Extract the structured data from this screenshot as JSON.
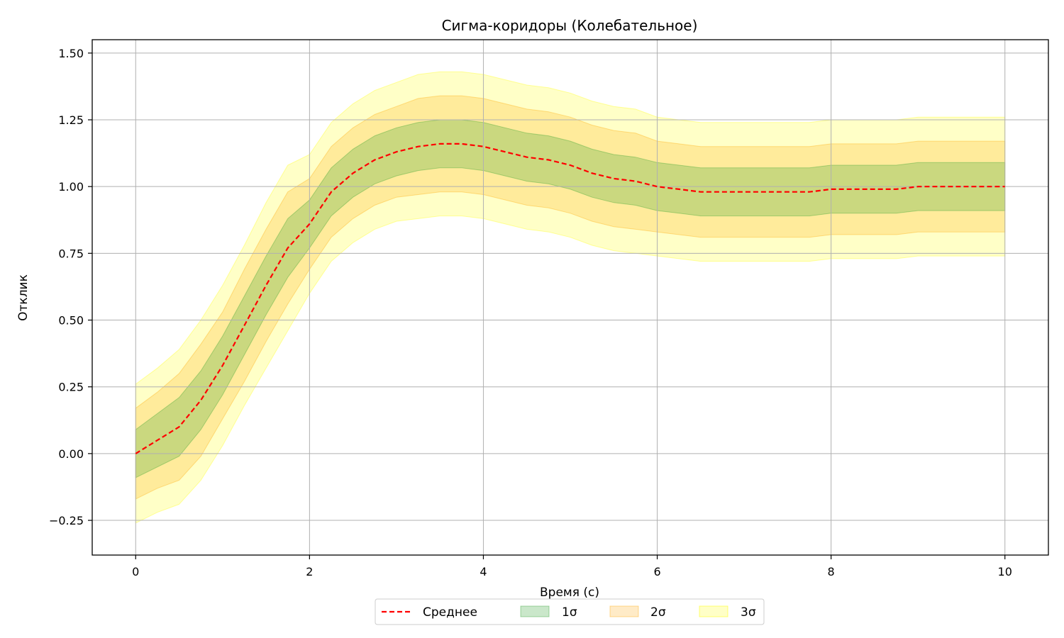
{
  "chart_data": {
    "type": "line",
    "title": "Сигма-коридоры (Колебательное)",
    "xlabel": "Время (с)",
    "ylabel": "Отклик",
    "xlim": [
      -0.5,
      10.5
    ],
    "ylim": [
      -0.38,
      1.55
    ],
    "grid": true,
    "legend_position": "bottom-center",
    "x_ticks": [
      0,
      2,
      4,
      6,
      8,
      10
    ],
    "x_tick_labels": [
      "0",
      "2",
      "4",
      "6",
      "8",
      "10"
    ],
    "y_ticks": [
      -0.25,
      0.0,
      0.25,
      0.5,
      0.75,
      1.0,
      1.25,
      1.5
    ],
    "y_tick_labels": [
      "−0.25",
      "0.00",
      "0.25",
      "0.50",
      "0.75",
      "1.00",
      "1.25",
      "1.50"
    ],
    "x": [
      0,
      0.25,
      0.5,
      0.75,
      1.0,
      1.25,
      1.5,
      1.75,
      2.0,
      2.25,
      2.5,
      2.75,
      3.0,
      3.25,
      3.5,
      3.75,
      4.0,
      4.25,
      4.5,
      4.75,
      5.0,
      5.25,
      5.5,
      5.75,
      6.0,
      6.25,
      6.5,
      6.75,
      7.0,
      7.25,
      7.5,
      7.75,
      8.0,
      8.25,
      8.5,
      8.75,
      9.0,
      9.25,
      9.5,
      9.75,
      10.0
    ],
    "series": [
      {
        "name": "Среднее",
        "kind": "line",
        "color": "#ff0000",
        "dash": "dashed",
        "values": [
          0.0,
          0.05,
          0.1,
          0.2,
          0.33,
          0.48,
          0.63,
          0.77,
          0.86,
          0.98,
          1.05,
          1.1,
          1.13,
          1.15,
          1.16,
          1.16,
          1.15,
          1.13,
          1.11,
          1.1,
          1.08,
          1.05,
          1.03,
          1.02,
          1.0,
          0.99,
          0.98,
          0.98,
          0.98,
          0.98,
          0.98,
          0.98,
          0.99,
          0.99,
          0.99,
          0.99,
          1.0,
          1.0,
          1.0,
          1.0,
          1.0
        ]
      },
      {
        "name": "1σ",
        "kind": "band",
        "color": "#2ca02c",
        "opacity": 0.25,
        "lower": [
          -0.09,
          -0.05,
          -0.01,
          0.09,
          0.22,
          0.37,
          0.52,
          0.66,
          0.77,
          0.89,
          0.96,
          1.01,
          1.04,
          1.06,
          1.07,
          1.07,
          1.06,
          1.04,
          1.02,
          1.01,
          0.99,
          0.96,
          0.94,
          0.93,
          0.91,
          0.9,
          0.89,
          0.89,
          0.89,
          0.89,
          0.89,
          0.89,
          0.9,
          0.9,
          0.9,
          0.9,
          0.91,
          0.91,
          0.91,
          0.91,
          0.91
        ],
        "upper": [
          0.09,
          0.15,
          0.21,
          0.31,
          0.44,
          0.59,
          0.74,
          0.88,
          0.95,
          1.07,
          1.14,
          1.19,
          1.22,
          1.24,
          1.25,
          1.25,
          1.24,
          1.22,
          1.2,
          1.19,
          1.17,
          1.14,
          1.12,
          1.11,
          1.09,
          1.08,
          1.07,
          1.07,
          1.07,
          1.07,
          1.07,
          1.07,
          1.08,
          1.08,
          1.08,
          1.08,
          1.09,
          1.09,
          1.09,
          1.09,
          1.09
        ]
      },
      {
        "name": "2σ",
        "kind": "band",
        "color": "#ffa500",
        "opacity": 0.22,
        "lower": [
          -0.17,
          -0.13,
          -0.1,
          -0.01,
          0.13,
          0.27,
          0.42,
          0.56,
          0.69,
          0.81,
          0.88,
          0.93,
          0.96,
          0.97,
          0.98,
          0.98,
          0.97,
          0.95,
          0.93,
          0.92,
          0.9,
          0.87,
          0.85,
          0.84,
          0.83,
          0.82,
          0.81,
          0.81,
          0.81,
          0.81,
          0.81,
          0.81,
          0.82,
          0.82,
          0.82,
          0.82,
          0.83,
          0.83,
          0.83,
          0.83,
          0.83
        ],
        "upper": [
          0.17,
          0.23,
          0.3,
          0.41,
          0.53,
          0.69,
          0.84,
          0.98,
          1.03,
          1.15,
          1.22,
          1.27,
          1.3,
          1.33,
          1.34,
          1.34,
          1.33,
          1.31,
          1.29,
          1.28,
          1.26,
          1.23,
          1.21,
          1.2,
          1.17,
          1.16,
          1.15,
          1.15,
          1.15,
          1.15,
          1.15,
          1.15,
          1.16,
          1.16,
          1.16,
          1.16,
          1.17,
          1.17,
          1.17,
          1.17,
          1.17
        ]
      },
      {
        "name": "3σ",
        "kind": "band",
        "color": "#ffff00",
        "opacity": 0.22,
        "lower": [
          -0.26,
          -0.22,
          -0.19,
          -0.1,
          0.03,
          0.18,
          0.32,
          0.46,
          0.6,
          0.72,
          0.79,
          0.84,
          0.87,
          0.88,
          0.89,
          0.89,
          0.88,
          0.86,
          0.84,
          0.83,
          0.81,
          0.78,
          0.76,
          0.75,
          0.74,
          0.73,
          0.72,
          0.72,
          0.72,
          0.72,
          0.72,
          0.72,
          0.73,
          0.73,
          0.73,
          0.73,
          0.74,
          0.74,
          0.74,
          0.74,
          0.74
        ],
        "upper": [
          0.26,
          0.32,
          0.39,
          0.5,
          0.63,
          0.78,
          0.94,
          1.08,
          1.12,
          1.24,
          1.31,
          1.36,
          1.39,
          1.42,
          1.43,
          1.43,
          1.42,
          1.4,
          1.38,
          1.37,
          1.35,
          1.32,
          1.3,
          1.29,
          1.26,
          1.25,
          1.24,
          1.24,
          1.24,
          1.24,
          1.24,
          1.24,
          1.25,
          1.25,
          1.25,
          1.25,
          1.26,
          1.26,
          1.26,
          1.26,
          1.26
        ]
      }
    ]
  }
}
